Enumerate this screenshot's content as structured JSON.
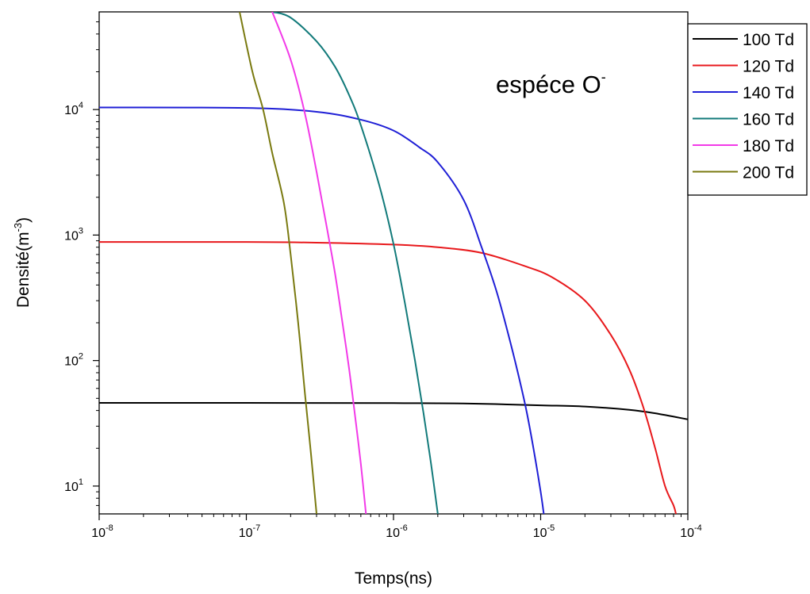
{
  "chart_data": {
    "type": "line",
    "title": "",
    "annotation": "espéce O",
    "annotation_sup": "-",
    "xlabel": "Temps(ns)",
    "ylabel_main": "Densité(m",
    "ylabel_sup": "-3",
    "ylabel_tail": ")",
    "x_scale": "log",
    "y_scale": "log",
    "xlim": [
      1e-08,
      0.0001
    ],
    "ylim": [
      6,
      60000
    ],
    "grid": false,
    "legend_position": "top-right (outside plot)",
    "x_ticks": [
      {
        "value": 1e-08,
        "base": "10",
        "exp": "-8"
      },
      {
        "value": 1e-07,
        "base": "10",
        "exp": "-7"
      },
      {
        "value": 1e-06,
        "base": "10",
        "exp": "-6"
      },
      {
        "value": 1e-05,
        "base": "10",
        "exp": "-5"
      },
      {
        "value": 0.0001,
        "base": "10",
        "exp": "-4"
      }
    ],
    "y_ticks": [
      {
        "value": 10,
        "base": "10",
        "exp": "1"
      },
      {
        "value": 100,
        "base": "10",
        "exp": "2"
      },
      {
        "value": 1000,
        "base": "10",
        "exp": "3"
      },
      {
        "value": 10000,
        "base": "10",
        "exp": "4"
      }
    ],
    "series": [
      {
        "name": "100 Td",
        "color": "#000000",
        "x": [
          1e-08,
          1e-07,
          1e-06,
          3e-06,
          1e-05,
          2e-05,
          4e-05,
          6e-05,
          0.0001
        ],
        "y": [
          46,
          46,
          45.8,
          45.5,
          44,
          43,
          40.5,
          38,
          34
        ]
      },
      {
        "name": "120 Td",
        "color": "#e8191c",
        "x": [
          1e-08,
          1e-07,
          3e-07,
          1e-06,
          2e-06,
          4e-06,
          8e-06,
          1.2e-05,
          2e-05,
          3e-05,
          4e-05,
          5e-05,
          6e-05,
          7e-05,
          8e-05,
          8.3e-05
        ],
        "y": [
          880,
          880,
          870,
          840,
          800,
          720,
          560,
          460,
          300,
          160,
          85,
          42,
          20,
          10,
          7,
          6
        ]
      },
      {
        "name": "140 Td",
        "color": "#1f1fd6",
        "x": [
          1e-08,
          1e-07,
          3e-07,
          6e-07,
          1e-06,
          1.5e-06,
          2e-06,
          3e-06,
          4e-06,
          5e-06,
          6e-06,
          7e-06,
          8e-06,
          9e-06,
          1e-05,
          1.05e-05
        ],
        "y": [
          10400,
          10300,
          9600,
          8300,
          6800,
          5000,
          3800,
          1900,
          780,
          360,
          165,
          80,
          40,
          19,
          9,
          6
        ]
      },
      {
        "name": "160 Td",
        "color": "#127a7a",
        "x": [
          1.5e-07,
          2e-07,
          3e-07,
          4e-07,
          5e-07,
          6e-07,
          8e-07,
          1e-06,
          1.2e-06,
          1.4e-06,
          1.6e-06,
          1.8e-06,
          2e-06
        ],
        "y": [
          60000,
          54000,
          35000,
          22000,
          13000,
          7500,
          2500,
          850,
          280,
          100,
          38,
          15,
          6
        ]
      },
      {
        "name": "180 Td",
        "color": "#f23ae8",
        "x": [
          1.5e-07,
          2e-07,
          2.5e-07,
          3e-07,
          3.5e-07,
          4e-07,
          4.5e-07,
          5e-07,
          5.5e-07,
          6e-07,
          6.5e-07
        ],
        "y": [
          60000,
          25000,
          9300,
          3200,
          1200,
          500,
          200,
          85,
          35,
          15,
          6
        ]
      },
      {
        "name": "200 Td",
        "color": "#7a7a10",
        "x": [
          9e-08,
          1.1e-07,
          1.3e-07,
          1.5e-07,
          1.8e-07,
          2e-07,
          2.25e-07,
          2.5e-07,
          2.75e-07,
          3e-07
        ],
        "y": [
          60000,
          20000,
          10000,
          4500,
          1800,
          700,
          200,
          55,
          18,
          6
        ]
      }
    ]
  }
}
